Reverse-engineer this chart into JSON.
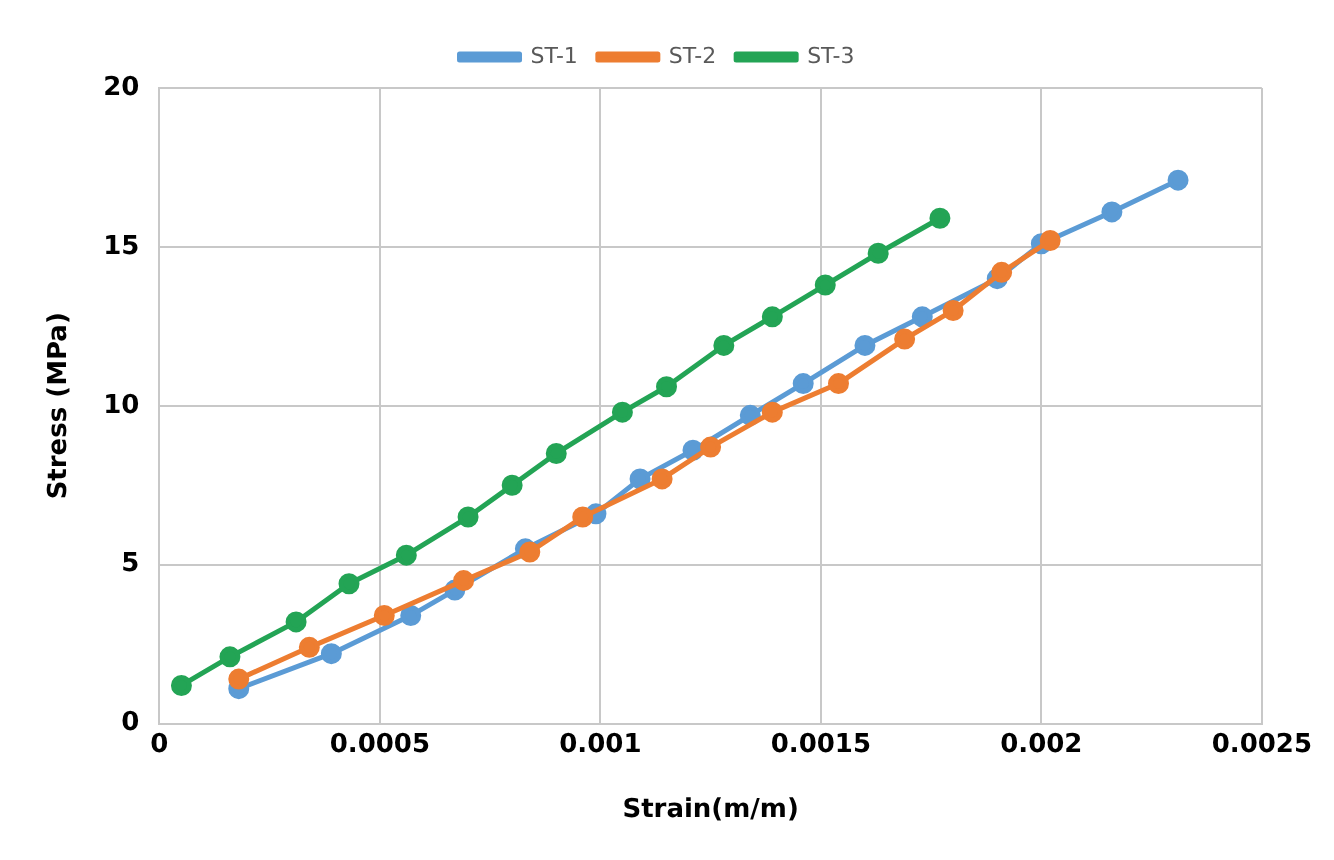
{
  "chart_data": {
    "type": "line",
    "xlabel": "Strain(m/m)",
    "ylabel": "Stress (MPa)",
    "xlim": [
      0,
      0.0025
    ],
    "xticks": [
      0,
      0.0005,
      0.001,
      0.0015,
      0.002,
      0.0025
    ],
    "ylim": [
      0,
      20
    ],
    "yticks": [
      0,
      5,
      10,
      15,
      20
    ],
    "grid": true,
    "legend": "top",
    "marker": "circle",
    "line_style": "solid",
    "series": [
      {
        "name": "ST-1",
        "color": "#5b9bd5",
        "x": [
          0.00018,
          0.00039,
          0.00057,
          0.00067,
          0.00083,
          0.00099,
          0.00109,
          0.00121,
          0.00134,
          0.00146,
          0.0016,
          0.00173,
          0.0019,
          0.002,
          0.00216,
          0.00231
        ],
        "values": [
          1.1,
          2.2,
          3.4,
          4.2,
          5.5,
          6.6,
          7.7,
          8.6,
          9.7,
          10.7,
          11.9,
          12.8,
          14.0,
          15.1,
          16.1,
          17.1
        ]
      },
      {
        "name": "ST-2",
        "color": "#ed7d31",
        "x": [
          0.00018,
          0.00034,
          0.00051,
          0.00069,
          0.00084,
          0.00096,
          0.00114,
          0.00125,
          0.00139,
          0.00154,
          0.00169,
          0.0018,
          0.00191,
          0.00202
        ],
        "values": [
          1.4,
          2.4,
          3.4,
          4.5,
          5.4,
          6.5,
          7.7,
          8.7,
          9.8,
          10.7,
          12.1,
          13.0,
          14.2,
          15.2
        ]
      },
      {
        "name": "ST-3",
        "color": "#23a455",
        "x": [
          5e-05,
          0.00016,
          0.00031,
          0.00043,
          0.00056,
          0.0007,
          0.0008,
          0.0009,
          0.00105,
          0.00115,
          0.00128,
          0.00139,
          0.00151,
          0.00163,
          0.00177
        ],
        "values": [
          1.2,
          2.1,
          3.2,
          4.4,
          5.3,
          6.5,
          7.5,
          8.5,
          9.8,
          10.6,
          11.9,
          12.8,
          13.8,
          14.8,
          15.9
        ]
      }
    ]
  }
}
